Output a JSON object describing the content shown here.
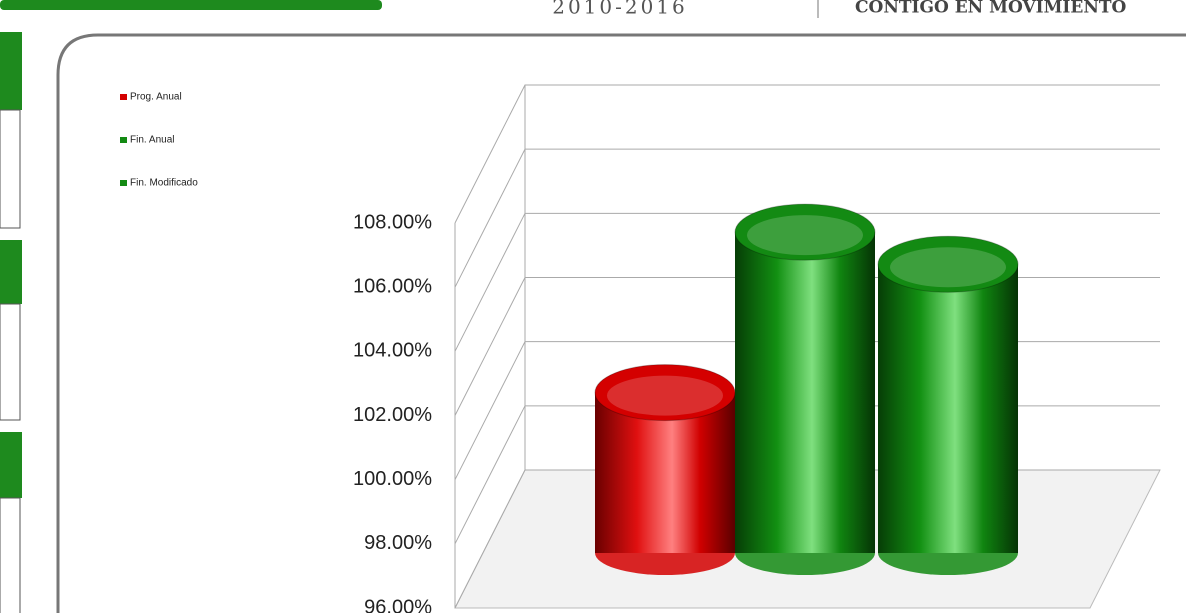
{
  "header": {
    "years": "2010-2016",
    "slogan": "CONTIGO EN MOVIMIENTO"
  },
  "chart_data": {
    "type": "bar",
    "series": [
      {
        "name": "Prog. Anual",
        "color": "#d40000",
        "values": [
          101
        ]
      },
      {
        "name": "Fin. Anual",
        "color": "#138a13",
        "values": [
          106
        ]
      },
      {
        "name": "Fin. Modificado",
        "color": "#138a13",
        "values": [
          105
        ]
      }
    ],
    "ylim": [
      96,
      108
    ],
    "yticks": [
      {
        "value": 96,
        "label": "96.00%"
      },
      {
        "value": 98,
        "label": "98.00%"
      },
      {
        "value": 100,
        "label": "100.00%"
      },
      {
        "value": 102,
        "label": "102.00%"
      },
      {
        "value": 104,
        "label": "104.00%"
      },
      {
        "value": 106,
        "label": "106.00%"
      },
      {
        "value": 108,
        "label": "108.00%"
      }
    ],
    "grid": true,
    "legend": "top-left"
  }
}
